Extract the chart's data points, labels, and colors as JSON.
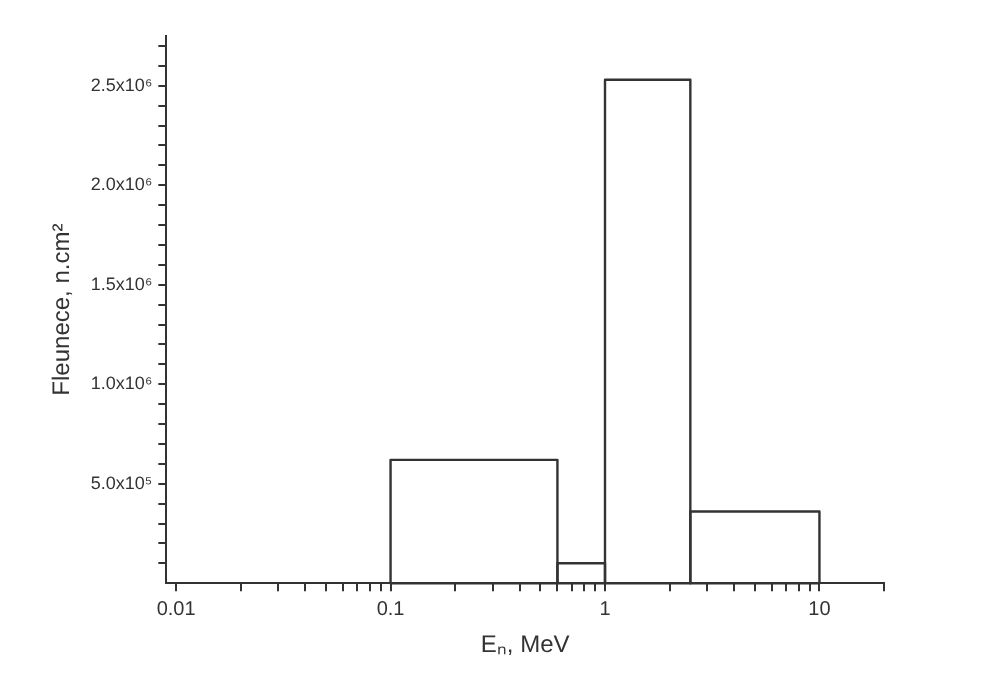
{
  "chart_data": {
    "type": "histogram",
    "xlabel": "Eₙ, MeV",
    "ylabel": "Fleunece, n.cm²",
    "bins": [
      0.1,
      0.6,
      1,
      2.5,
      10
    ],
    "values": [
      620000,
      100000,
      2530000,
      360000
    ],
    "color": "#333333",
    "log": "x",
    "xlim": [
      0.009,
      20
    ],
    "xticks": [
      0.01,
      {
        "value": 0.02,
        "label": null
      },
      {
        "value": 0.03,
        "label": null
      },
      {
        "value": 0.04,
        "label": null
      },
      {
        "value": 0.05,
        "label": null
      },
      {
        "value": 0.06,
        "label": null
      },
      {
        "value": 0.07,
        "label": null
      },
      {
        "value": 0.08,
        "label": null
      },
      {
        "value": 0.09,
        "label": null
      },
      0.1,
      {
        "value": 0.2,
        "label": null
      },
      {
        "value": 0.3,
        "label": null
      },
      {
        "value": 0.4,
        "label": null
      },
      {
        "value": 0.5,
        "label": null
      },
      {
        "value": 0.6,
        "label": null
      },
      {
        "value": 0.7,
        "label": null
      },
      {
        "value": 0.8,
        "label": null
      },
      {
        "value": 0.9,
        "label": null
      },
      1,
      {
        "value": 2,
        "label": null
      },
      {
        "value": 3,
        "label": null
      },
      {
        "value": 4,
        "label": null
      },
      {
        "value": 5,
        "label": null
      },
      {
        "value": 6,
        "label": null
      },
      {
        "value": 7,
        "label": null
      },
      {
        "value": 8,
        "label": null
      },
      {
        "value": 9,
        "label": null
      },
      10,
      {
        "value": 20,
        "label": null
      }
    ],
    "ylim": [
      0,
      2750000
    ],
    "yticks": [
      {
        "value": 100000,
        "label": null
      },
      {
        "value": 200000,
        "label": null
      },
      {
        "value": 300000,
        "label": null
      },
      {
        "value": 400000,
        "label": null
      },
      {
        "value": 500000,
        "label": "5.0x10⁵"
      },
      {
        "value": 600000,
        "label": null
      },
      {
        "value": 700000,
        "label": null
      },
      {
        "value": 800000,
        "label": null
      },
      {
        "value": 900000,
        "label": null
      },
      {
        "value": 1000000,
        "label": "1.0x10⁶"
      },
      {
        "value": 1100000,
        "label": null
      },
      {
        "value": 1200000,
        "label": null
      },
      {
        "value": 1300000,
        "label": null
      },
      {
        "value": 1400000,
        "label": null
      },
      {
        "value": 1500000,
        "label": "1.5x10⁶"
      },
      {
        "value": 1600000,
        "label": null
      },
      {
        "value": 1700000,
        "label": null
      },
      {
        "value": 1800000,
        "label": null
      },
      {
        "value": 1900000,
        "label": null
      },
      {
        "value": 2000000,
        "label": "2.0x10⁶"
      },
      {
        "value": 2100000,
        "label": null
      },
      {
        "value": 2200000,
        "label": null
      },
      {
        "value": 2300000,
        "label": null
      },
      {
        "value": 2400000,
        "label": null
      },
      {
        "value": 2500000,
        "label": "2.5x10⁶"
      },
      {
        "value": 2600000,
        "label": null
      },
      {
        "value": 2700000,
        "label": null
      }
    ],
    "grid": false,
    "legend": false
  }
}
